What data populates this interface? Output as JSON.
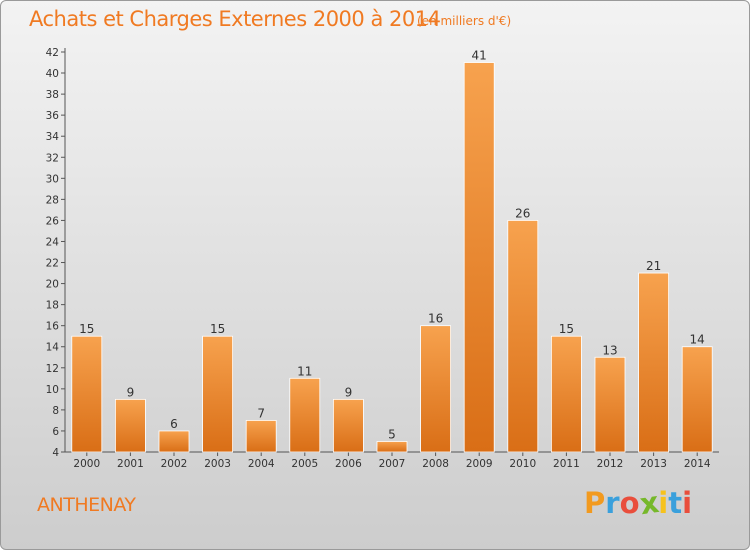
{
  "header": {
    "title": "Achats et Charges Externes 2000 à 2014",
    "subtitle": "(en milliers d'€)"
  },
  "footer": {
    "commune": "ANTHENAY",
    "logo": {
      "letters": [
        "P",
        "r",
        "o",
        "x",
        "i",
        "t",
        "i"
      ],
      "colors": [
        "#f29a1f",
        "#3aa0dc",
        "#e94e3c",
        "#76b82a",
        "#f6c21c",
        "#3aa0dc",
        "#e94e3c"
      ]
    }
  },
  "chart_data": {
    "type": "bar",
    "title": "Achats et Charges Externes 2000 à 2014",
    "subtitle": "(en milliers d'€)",
    "categories": [
      "2000",
      "2001",
      "2002",
      "2003",
      "2004",
      "2005",
      "2006",
      "2007",
      "2008",
      "2009",
      "2010",
      "2011",
      "2012",
      "2013",
      "2014"
    ],
    "values": [
      15,
      9,
      6,
      15,
      7,
      11,
      9,
      5,
      16,
      41,
      26,
      15,
      13,
      21,
      14
    ],
    "ylim": [
      4,
      42
    ],
    "yticks": [
      4,
      6,
      8,
      10,
      12,
      14,
      16,
      18,
      20,
      22,
      24,
      26,
      28,
      30,
      32,
      34,
      36,
      38,
      40,
      42
    ],
    "grid": false,
    "bar_color": "#f08a2a"
  }
}
